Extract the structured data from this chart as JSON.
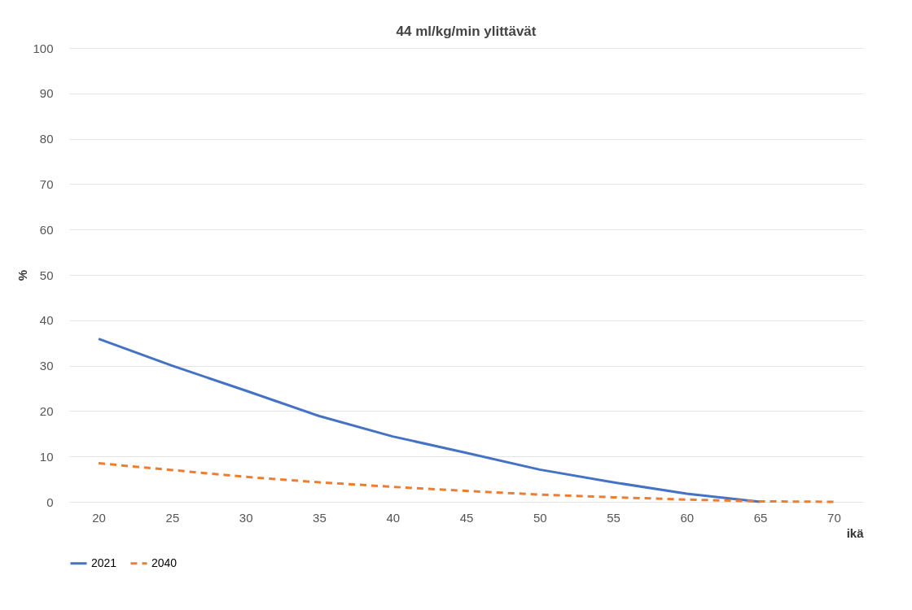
{
  "chart_data": {
    "type": "line",
    "title": "44 ml/kg/min ylittävät",
    "xlabel": "ikä",
    "ylabel": "%",
    "x": [
      20,
      25,
      30,
      35,
      40,
      45,
      50,
      55,
      60,
      65,
      70
    ],
    "series": [
      {
        "name": "2021",
        "color": "#4472c4",
        "line_style": "solid",
        "values": [
          35.9,
          30.0,
          24.5,
          18.9,
          14.4,
          10.8,
          7.1,
          4.3,
          1.8,
          0,
          null
        ]
      },
      {
        "name": "2040",
        "color": "#ed7d31",
        "line_style": "dashed",
        "values": [
          8.5,
          7.0,
          5.5,
          4.3,
          3.3,
          2.4,
          1.6,
          1.0,
          0.5,
          0.1,
          0
        ]
      }
    ],
    "xlim": [
      18,
      72
    ],
    "xticks": [
      20,
      25,
      30,
      35,
      40,
      45,
      50,
      55,
      60,
      65,
      70
    ],
    "ylim": [
      0,
      100
    ],
    "yticks": [
      0,
      10,
      20,
      30,
      40,
      50,
      60,
      70,
      80,
      90,
      100
    ],
    "grid": "y",
    "legend": "bottom",
    "marker": "none"
  }
}
